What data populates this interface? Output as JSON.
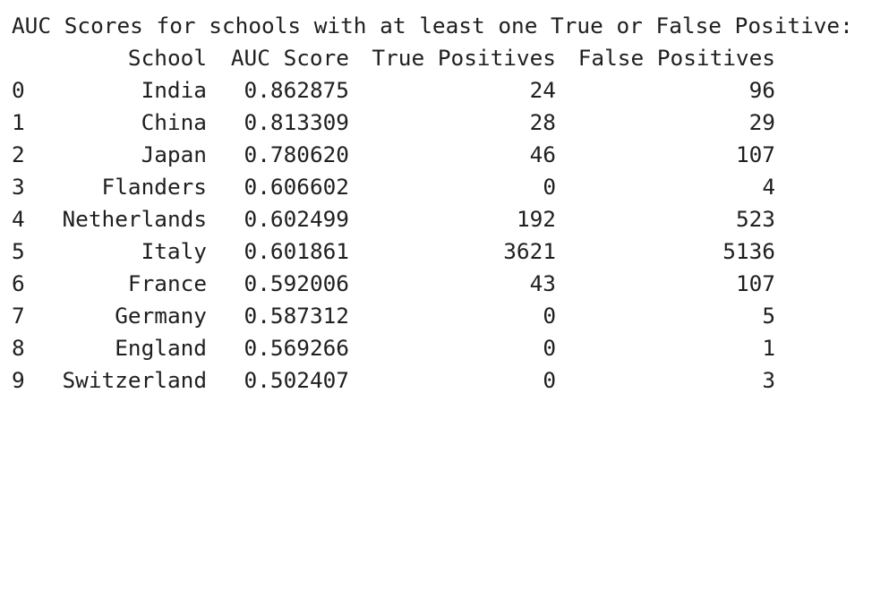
{
  "output": {
    "heading": "AUC Scores for schools with at least one True or False Positive:",
    "columns": {
      "school": "School",
      "auc": "AUC Score",
      "tp": "True Positives",
      "fp": "False Positives"
    },
    "rows": [
      {
        "index": "0",
        "school": "India",
        "auc": "0.862875",
        "tp": "24",
        "fp": "96"
      },
      {
        "index": "1",
        "school": "China",
        "auc": "0.813309",
        "tp": "28",
        "fp": "29"
      },
      {
        "index": "2",
        "school": "Japan",
        "auc": "0.780620",
        "tp": "46",
        "fp": "107"
      },
      {
        "index": "3",
        "school": "Flanders",
        "auc": "0.606602",
        "tp": "0",
        "fp": "4"
      },
      {
        "index": "4",
        "school": "Netherlands",
        "auc": "0.602499",
        "tp": "192",
        "fp": "523"
      },
      {
        "index": "5",
        "school": "Italy",
        "auc": "0.601861",
        "tp": "3621",
        "fp": "5136"
      },
      {
        "index": "6",
        "school": "France",
        "auc": "0.592006",
        "tp": "43",
        "fp": "107"
      },
      {
        "index": "7",
        "school": "Germany",
        "auc": "0.587312",
        "tp": "0",
        "fp": "5"
      },
      {
        "index": "8",
        "school": "England",
        "auc": "0.569266",
        "tp": "0",
        "fp": "1"
      },
      {
        "index": "9",
        "school": "Switzerland",
        "auc": "0.502407",
        "tp": "0",
        "fp": "3"
      }
    ]
  }
}
